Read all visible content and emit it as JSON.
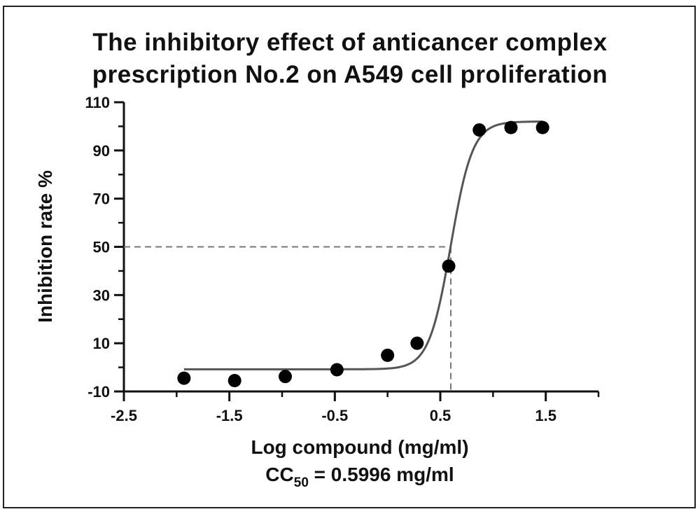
{
  "chart_data": {
    "type": "scatter",
    "title_line1": "The inhibitory effect of anticancer complex",
    "title_line2": "prescription No.2 on A549 cell proliferation",
    "xlabel": "Log compound (mg/ml)",
    "ylabel": "Inhibition rate %",
    "cc50_prefix": "CC",
    "cc50_sub": "50",
    "cc50_text": " = 0.5996 mg/ml",
    "xlim": [
      -2.5,
      2.0
    ],
    "ylim": [
      -10,
      110
    ],
    "x_tick_labels": [
      "-2.5",
      "-1.5",
      "-0.5",
      "0.5",
      "1.5"
    ],
    "x_tick_values": [
      -2.5,
      -1.5,
      -0.5,
      0.5,
      1.5
    ],
    "x_minor_ticks": [
      -2.0,
      -1.0,
      0.0,
      1.0,
      2.0
    ],
    "y_tick_labels": [
      "-10",
      "10",
      "30",
      "50",
      "70",
      "90",
      "110"
    ],
    "y_tick_values": [
      -10,
      10,
      30,
      50,
      70,
      90,
      110
    ],
    "y_minor_ticks": [
      0,
      20,
      40,
      60,
      80,
      100
    ],
    "points": [
      {
        "x": -1.93,
        "y": -4.5
      },
      {
        "x": -1.45,
        "y": -5.5
      },
      {
        "x": -0.97,
        "y": -3.8
      },
      {
        "x": -0.48,
        "y": -1.0
      },
      {
        "x": 0.0,
        "y": 5.0
      },
      {
        "x": 0.28,
        "y": 10.0
      },
      {
        "x": 0.58,
        "y": 42.0
      },
      {
        "x": 0.87,
        "y": 98.5
      },
      {
        "x": 1.17,
        "y": 99.5
      },
      {
        "x": 1.47,
        "y": 99.5
      }
    ],
    "fit": {
      "bottom": -0.8,
      "top": 102.0,
      "log_ec50": 0.5996,
      "hill": 4.2,
      "x_start": -1.93,
      "x_end": 1.47
    },
    "reference_line": {
      "y": 50,
      "x": 0.5996
    },
    "colors": {
      "points": "#000000",
      "curve": "#555555",
      "dash": "#777777",
      "axis": "#111111"
    }
  }
}
